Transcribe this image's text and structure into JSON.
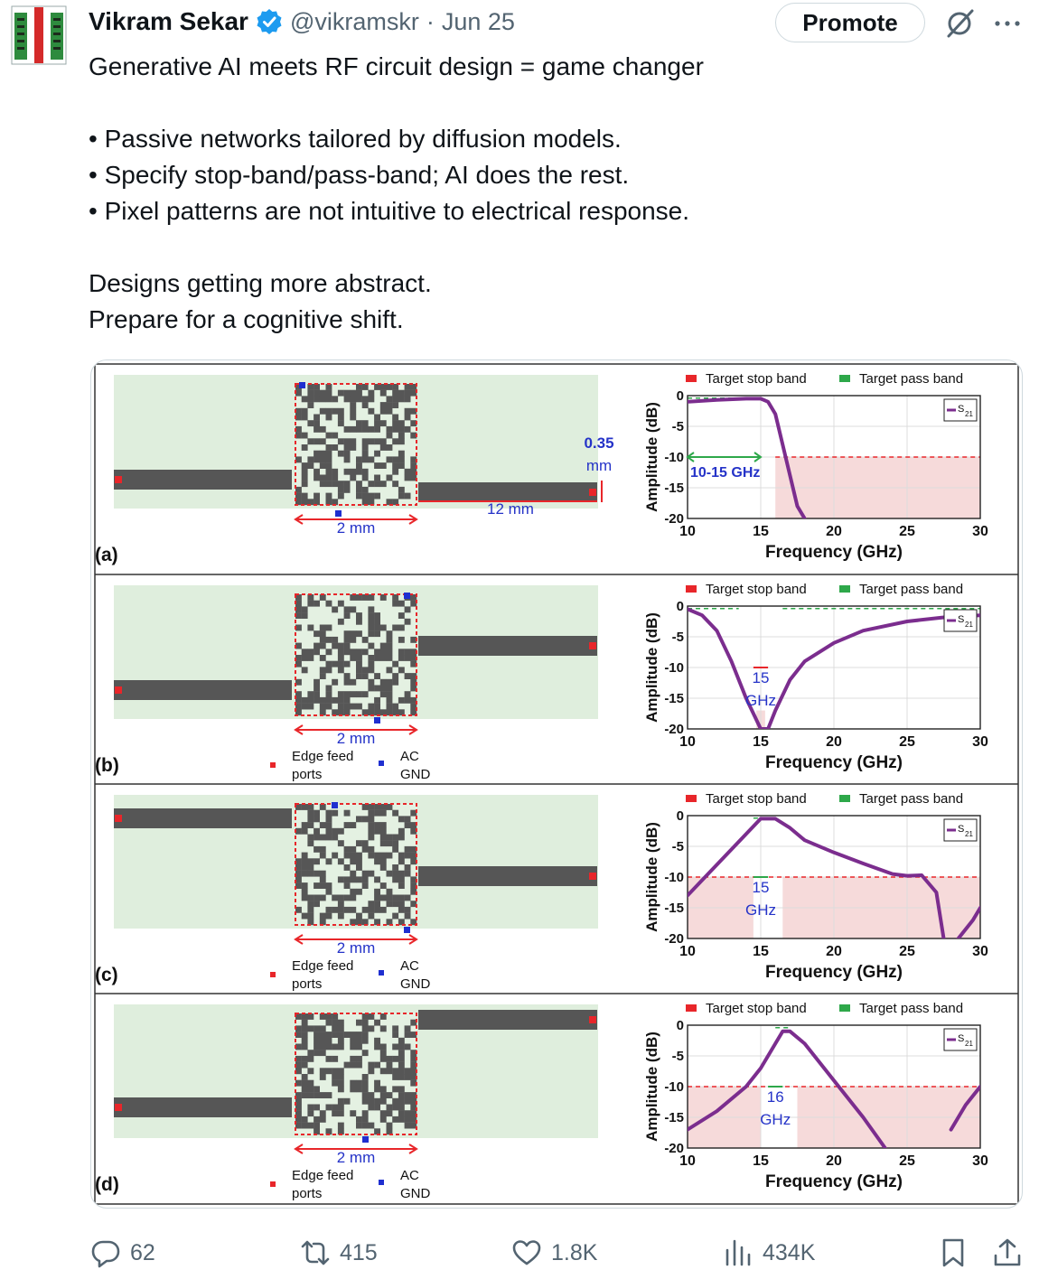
{
  "author": {
    "name": "Vikram Sekar",
    "handle": "@vikramskr",
    "separator": "·",
    "date": "Jun 25"
  },
  "header": {
    "promote_label": "Promote",
    "grok_icon": "grok-icon",
    "more_icon": "more-icon"
  },
  "tweet": {
    "line1": "Generative AI meets RF circuit design = game changer",
    "bullet1": "• Passive networks tailored by diffusion models.",
    "bullet2": "• Specify stop-band/pass-band; AI does the rest.",
    "bullet3": "• Pixel patterns are not intuitive to electrical response.",
    "line5": "Designs getting more abstract.",
    "line6": "Prepare for a cognitive shift."
  },
  "figure": {
    "legend_stop": "Target stop band",
    "legend_pass": "Target pass band",
    "legend_series": "S",
    "legend_series_sub": "21",
    "ylabel": "Amplitude (dB)",
    "xlabel": "Frequency (GHz)",
    "x_ticks": [
      "10",
      "15",
      "20",
      "25",
      "30"
    ],
    "y_ticks": [
      "0",
      "-5",
      "-10",
      "-15",
      "-20"
    ],
    "edge_feed_label_1": "Edge feed",
    "edge_feed_label_2": "ports",
    "ac_gnd_label_1": "AC",
    "ac_gnd_label_2": "GND",
    "dim_2mm": "2 mm",
    "dim_12mm": "12 mm",
    "dim_035_1": "0.35",
    "dim_035_2": "mm",
    "colors": {
      "stop": "#e8262a",
      "pass": "#2ea84a",
      "series": "#7b2d8e",
      "substrate": "#dfeedd",
      "metal": "#565656",
      "stop_fill": "#f6dada"
    },
    "panels": [
      {
        "label": "(a)",
        "band_note_1": "10-15 GHz",
        "band_note_2": ""
      },
      {
        "label": "(b)",
        "band_note_1": "15",
        "band_note_2": "GHz"
      },
      {
        "label": "(c)",
        "band_note_1": "15",
        "band_note_2": "GHz"
      },
      {
        "label": "(d)",
        "band_note_1": "16",
        "band_note_2": "GHz"
      }
    ]
  },
  "chart_data": [
    {
      "type": "line",
      "title": "(a)",
      "xlabel": "Frequency (GHz)",
      "ylabel": "Amplitude (dB)",
      "xlim": [
        10,
        30
      ],
      "ylim": [
        -20,
        0
      ],
      "series": [
        {
          "name": "S21",
          "x": [
            10,
            12,
            14,
            15,
            15.5,
            16,
            16.5,
            17,
            17.5,
            18
          ],
          "y": [
            -1,
            -0.7,
            -0.5,
            -0.5,
            -1,
            -3,
            -8,
            -13,
            -18,
            -20
          ]
        }
      ],
      "target_pass_band_ghz": [
        10,
        15
      ],
      "target_stop_band_ghz": [
        16,
        30
      ],
      "stop_band_level_db": -10
    },
    {
      "type": "line",
      "title": "(b)",
      "xlabel": "Frequency (GHz)",
      "ylabel": "Amplitude (dB)",
      "xlim": [
        10,
        30
      ],
      "ylim": [
        -20,
        0
      ],
      "series": [
        {
          "name": "S21",
          "x": [
            10,
            11,
            12,
            13,
            14,
            15,
            15.5,
            16,
            17,
            18,
            20,
            22,
            25,
            28,
            30
          ],
          "y": [
            -0.5,
            -1.5,
            -4,
            -9,
            -15,
            -20,
            -20,
            -17,
            -12,
            -9,
            -6,
            -4,
            -2.5,
            -1.7,
            -1.5
          ]
        }
      ],
      "target_pass_band_ghz": [
        [
          10,
          13.5
        ],
        [
          16.5,
          30
        ]
      ],
      "target_stop_band_ghz": [
        14.7,
        15.3
      ],
      "stop_band_level_db": -10
    },
    {
      "type": "line",
      "title": "(c)",
      "xlabel": "Frequency (GHz)",
      "ylabel": "Amplitude (dB)",
      "xlim": [
        10,
        30
      ],
      "ylim": [
        -20,
        0
      ],
      "series": [
        {
          "name": "S21",
          "x": [
            10,
            11,
            12,
            13,
            14,
            15,
            16,
            17,
            18,
            20,
            22,
            24,
            25,
            26,
            27,
            27.5,
            28.5,
            29.5,
            30
          ],
          "y": [
            -13,
            -10.5,
            -8,
            -5.5,
            -3,
            -0.5,
            -0.5,
            -2,
            -4,
            -6,
            -7.8,
            -9.5,
            -9.8,
            -9.7,
            -12.5,
            -20,
            -20,
            -17,
            -15
          ]
        }
      ],
      "target_pass_band_ghz": [
        14.5,
        15.5
      ],
      "target_stop_band_ghz": [
        [
          10,
          14.5
        ],
        [
          16.5,
          30
        ]
      ],
      "stop_band_level_db": -10
    },
    {
      "type": "line",
      "title": "(d)",
      "xlabel": "Frequency (GHz)",
      "ylabel": "Amplitude (dB)",
      "xlim": [
        10,
        30
      ],
      "ylim": [
        -20,
        0
      ],
      "series": [
        {
          "name": "S21",
          "x": [
            10,
            12,
            14,
            15,
            16,
            16.5,
            17,
            18,
            20,
            22,
            23.5,
            25,
            27,
            28,
            29,
            30
          ],
          "y": [
            -17,
            -14,
            -10,
            -7,
            -3,
            -1,
            -1,
            -3,
            -9,
            -15,
            -20,
            -20,
            -20,
            -17,
            -13,
            -10
          ]
        }
      ],
      "target_pass_band_ghz": [
        16,
        17
      ],
      "target_stop_band_ghz": [
        [
          10,
          15
        ],
        [
          17.5,
          30
        ]
      ],
      "stop_band_level_db": -10
    }
  ],
  "actions": {
    "replies": "62",
    "reposts": "415",
    "likes": "1.8K",
    "views": "434K"
  }
}
